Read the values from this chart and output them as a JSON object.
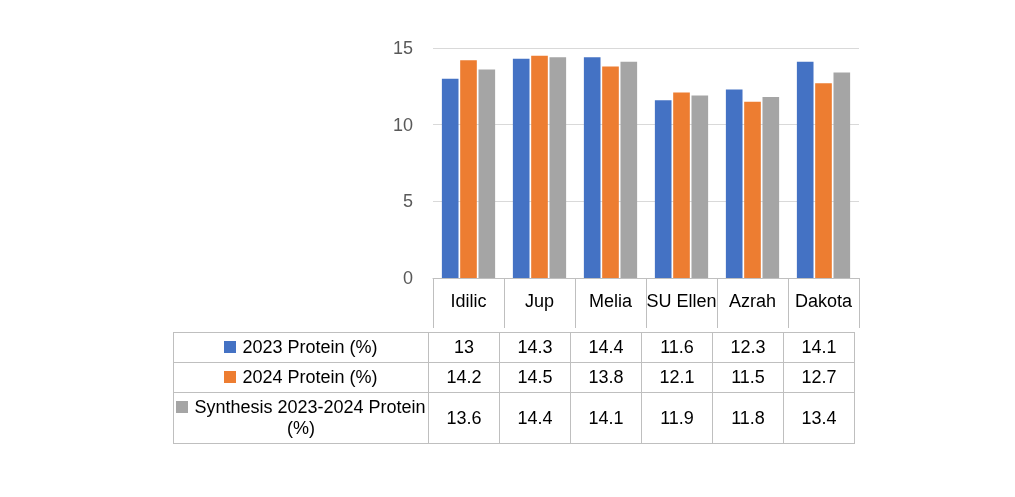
{
  "chart_data": {
    "type": "bar",
    "categories": [
      "Idilic",
      "Jup",
      "Melia",
      "SU Ellen",
      "Azrah",
      "Dakota"
    ],
    "series": [
      {
        "name": "2023 Protein (%)",
        "color": "#4472c4",
        "values": [
          13,
          14.3,
          14.4,
          11.6,
          12.3,
          14.1
        ]
      },
      {
        "name": "2024 Protein (%)",
        "color": "#ed7d31",
        "values": [
          14.2,
          14.5,
          13.8,
          12.1,
          11.5,
          12.7
        ]
      },
      {
        "name": "Synthesis 2023-2024 Protein (%)",
        "color": "#a5a5a5",
        "values": [
          13.6,
          14.4,
          14.1,
          11.9,
          11.8,
          13.4
        ]
      }
    ],
    "ylim": [
      0,
      15
    ],
    "yticks": [
      0,
      5,
      10,
      15
    ],
    "grid": "y",
    "legend": "bottom",
    "data_labels": true
  }
}
